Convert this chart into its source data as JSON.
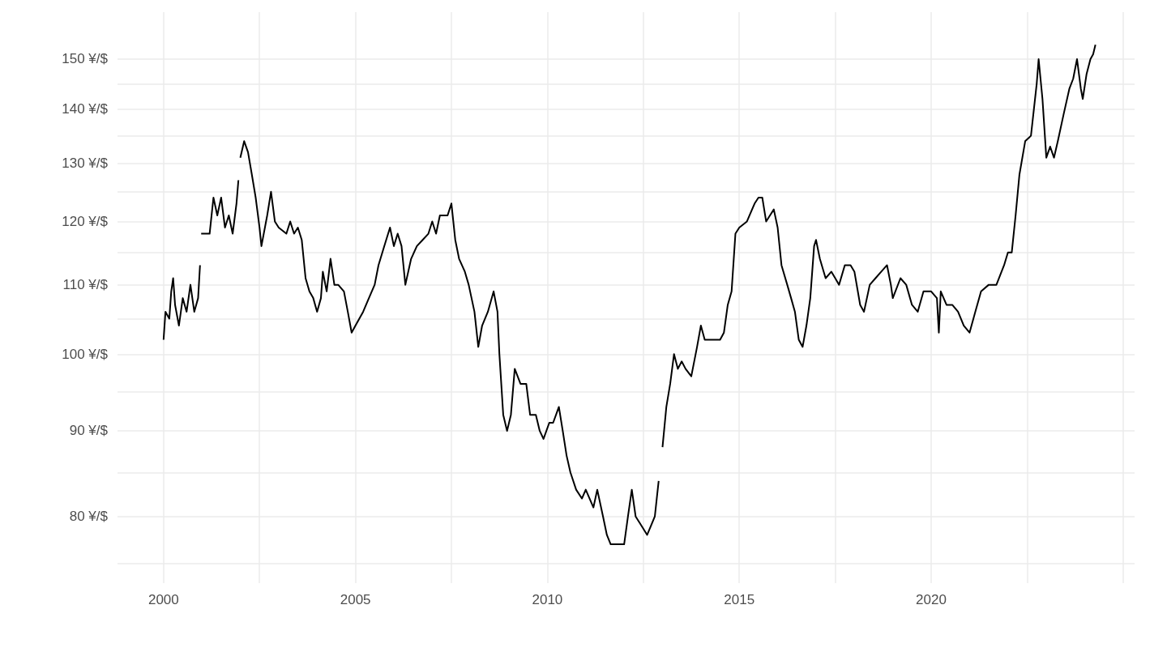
{
  "chart_data": {
    "type": "line",
    "color": "#000000",
    "marker": "none",
    "line_style": "solid",
    "log": "y",
    "grid": true,
    "xlim": [
      1998.8,
      2025.3
    ],
    "ylim": [
      73,
      160
    ],
    "xticks": [
      2000,
      2005,
      2010,
      2015,
      2020,
      {
        "value": 2002.5,
        "label": null
      },
      {
        "value": 2007.5,
        "label": null
      },
      {
        "value": 2012.5,
        "label": null
      },
      {
        "value": 2017.5,
        "label": null
      },
      {
        "value": 2022.5,
        "label": null
      },
      {
        "value": 2025,
        "label": null
      }
    ],
    "yticks": [
      {
        "value": 80,
        "label": "80 ¥/$"
      },
      {
        "value": 90,
        "label": "90 ¥/$"
      },
      {
        "value": 100,
        "label": "100 ¥/$"
      },
      {
        "value": 110,
        "label": "110 ¥/$"
      },
      {
        "value": 120,
        "label": "120 ¥/$"
      },
      {
        "value": 130,
        "label": "130 ¥/$"
      },
      {
        "value": 140,
        "label": "140 ¥/$"
      },
      {
        "value": 150,
        "label": "150 ¥/$"
      },
      {
        "value": 75,
        "label": null
      },
      {
        "value": 85,
        "label": null
      },
      {
        "value": 95,
        "label": null
      },
      {
        "value": 105,
        "label": null
      },
      {
        "value": 115,
        "label": null
      },
      {
        "value": 125,
        "label": null
      },
      {
        "value": 135,
        "label": null
      },
      {
        "value": 145,
        "label": null
      }
    ],
    "x": [
      2000.0,
      2000.05,
      2000.15,
      2000.2,
      2000.25,
      2000.3,
      2000.4,
      2000.5,
      2000.6,
      2000.7,
      2000.8,
      2000.9,
      2000.95,
      2000.97,
      2000.98,
      2001.2,
      2001.3,
      2001.4,
      2001.5,
      2001.6,
      2001.7,
      2001.8,
      2001.9,
      2001.95,
      2001.97,
      2002.0,
      2002.1,
      2002.2,
      2002.3,
      2002.4,
      2002.5,
      2002.55,
      2002.7,
      2002.8,
      2002.9,
      2003.0,
      2003.2,
      2003.3,
      2003.4,
      2003.5,
      2003.6,
      2003.7,
      2003.8,
      2003.9,
      2004.0,
      2004.1,
      2004.15,
      2004.25,
      2004.35,
      2004.45,
      2004.55,
      2004.7,
      2004.8,
      2004.9,
      2005.0,
      2005.1,
      2005.2,
      2005.35,
      2005.5,
      2005.6,
      2005.75,
      2005.9,
      2006.0,
      2006.1,
      2006.2,
      2006.3,
      2006.45,
      2006.6,
      2006.75,
      2006.9,
      2007.0,
      2007.1,
      2007.2,
      2007.4,
      2007.5,
      2007.6,
      2007.7,
      2007.85,
      2007.95,
      2008.1,
      2008.2,
      2008.3,
      2008.45,
      2008.6,
      2008.7,
      2008.75,
      2008.85,
      2008.95,
      2009.05,
      2009.15,
      2009.3,
      2009.45,
      2009.55,
      2009.7,
      2009.8,
      2009.9,
      2010.05,
      2010.15,
      2010.3,
      2010.4,
      2010.5,
      2010.6,
      2010.75,
      2010.9,
      2011.0,
      2011.1,
      2011.2,
      2011.3,
      2011.45,
      2011.55,
      2011.65,
      2011.8,
      2011.9,
      2012.0,
      2012.1,
      2012.2,
      2012.3,
      2012.45,
      2012.6,
      2012.7,
      2012.8,
      2012.85,
      2012.9,
      2012.95,
      2013.0,
      2013.1,
      2013.2,
      2013.3,
      2013.4,
      2013.5,
      2013.6,
      2013.75,
      2013.9,
      2014.0,
      2014.1,
      2014.3,
      2014.5,
      2014.6,
      2014.7,
      2014.8,
      2014.9,
      2015.0,
      2015.2,
      2015.4,
      2015.5,
      2015.6,
      2015.7,
      2015.8,
      2015.9,
      2016.0,
      2016.1,
      2016.25,
      2016.35,
      2016.45,
      2016.55,
      2016.65,
      2016.75,
      2016.85,
      2016.95,
      2017.0,
      2017.1,
      2017.25,
      2017.4,
      2017.5,
      2017.6,
      2017.75,
      2017.9,
      2018.0,
      2018.15,
      2018.25,
      2018.4,
      2018.55,
      2018.7,
      2018.85,
      2018.95,
      2019.0,
      2019.2,
      2019.35,
      2019.5,
      2019.65,
      2019.8,
      2020.0,
      2020.15,
      2020.2,
      2020.25,
      2020.4,
      2020.55,
      2020.7,
      2020.85,
      2021.0,
      2021.15,
      2021.3,
      2021.5,
      2021.7,
      2021.9,
      2022.0,
      2022.1,
      2022.2,
      2022.3,
      2022.45,
      2022.6,
      2022.75,
      2022.8,
      2022.9,
      2023.0,
      2023.1,
      2023.2,
      2023.3,
      2023.45,
      2023.6,
      2023.7,
      2023.8,
      2023.9,
      2023.95,
      2024.05,
      2024.15,
      2024.22,
      2024.28
    ],
    "values": [
      102,
      106,
      105,
      109,
      111,
      107,
      104,
      108,
      106,
      110,
      106,
      108,
      113,
      null,
      118,
      118,
      124,
      121,
      124,
      119,
      121,
      118,
      123,
      127,
      null,
      131,
      134,
      132,
      128,
      124,
      119,
      116,
      121,
      125,
      120,
      119,
      118,
      120,
      118,
      119,
      117,
      111,
      109,
      108,
      106,
      108,
      112,
      109,
      114,
      110,
      110,
      109,
      106,
      103,
      104,
      105,
      106,
      108,
      110,
      113,
      116,
      119,
      116,
      118,
      116,
      110,
      114,
      116,
      117,
      118,
      120,
      118,
      121,
      121,
      123,
      117,
      114,
      112,
      110,
      106,
      101,
      104,
      106,
      109,
      106,
      100,
      92,
      90,
      92,
      98,
      96,
      96,
      92,
      92,
      90,
      89,
      91,
      91,
      93,
      90,
      87,
      85,
      83,
      82,
      83,
      82,
      81,
      83,
      80,
      78,
      77,
      77,
      77,
      77,
      80,
      83,
      80,
      79,
      78,
      79,
      80,
      82,
      84,
      null,
      88,
      93,
      96,
      100,
      98,
      99,
      98,
      97,
      101,
      104,
      102,
      102,
      102,
      103,
      107,
      109,
      118,
      119,
      120,
      123,
      124,
      124,
      120,
      121,
      122,
      119,
      113,
      110,
      108,
      106,
      102,
      101,
      104,
      108,
      116,
      117,
      114,
      111,
      112,
      111,
      110,
      113,
      113,
      112,
      107,
      106,
      110,
      111,
      112,
      113,
      110,
      108,
      111,
      110,
      107,
      106,
      109,
      109,
      108,
      103,
      109,
      107,
      107,
      106,
      104,
      103,
      106,
      109,
      110,
      110,
      113,
      115,
      115,
      121,
      128,
      134,
      135,
      145,
      150,
      142,
      131,
      133,
      131,
      134,
      139,
      144,
      146,
      150,
      144,
      142,
      147,
      150,
      151,
      153
    ]
  }
}
